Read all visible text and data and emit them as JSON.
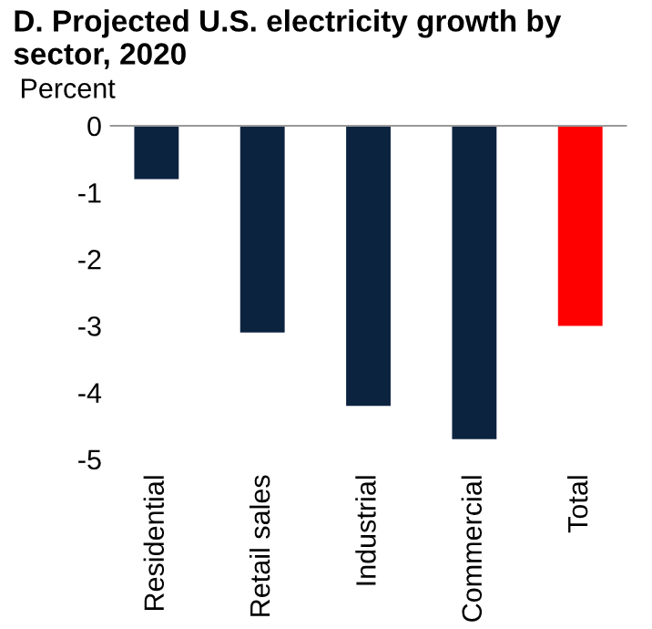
{
  "chart_data": {
    "type": "bar",
    "title": "D. Projected U.S. electricity growth by sector, 2020",
    "ylabel": "Percent",
    "categories": [
      "Residential",
      "Retail sales",
      "Industrial",
      "Commercial",
      "Total"
    ],
    "values": [
      -0.8,
      -3.1,
      -4.2,
      -4.7,
      -3.0
    ],
    "colors": [
      "#0c2340",
      "#0c2340",
      "#0c2340",
      "#0c2340",
      "#ff0000"
    ],
    "ylim": [
      -5,
      0
    ],
    "yticks": [
      -5,
      -4,
      -3,
      -2,
      -1,
      0
    ],
    "grid": false,
    "legend": false
  }
}
